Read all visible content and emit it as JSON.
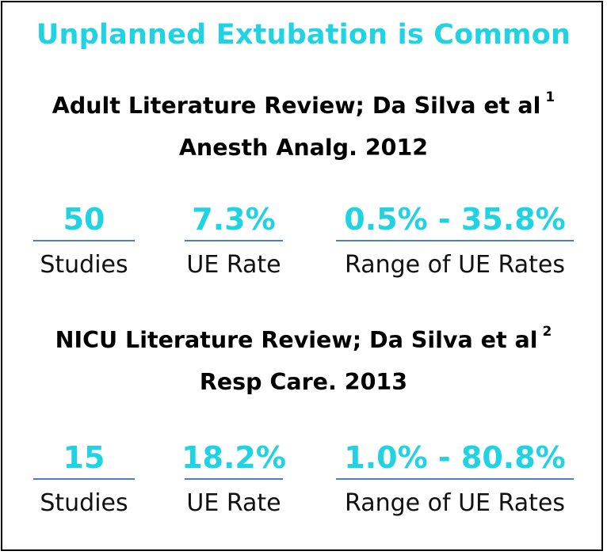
{
  "title": "Unplanned Extubation is Common",
  "sections": [
    {
      "heading_line1": "Adult Literature Review; Da Silva et al",
      "reference": "1",
      "heading_line2": "Anesth Analg. 2012",
      "stats": [
        {
          "value": "50",
          "label": "Studies"
        },
        {
          "value": "7.3%",
          "label": "UE Rate"
        },
        {
          "value": "0.5% - 35.8%",
          "label": "Range of UE Rates"
        }
      ]
    },
    {
      "heading_line1": "NICU Literature Review; Da Silva et al",
      "reference": "2",
      "heading_line2": "Resp Care. 2013",
      "stats": [
        {
          "value": "15",
          "label": "Studies"
        },
        {
          "value": "18.2%",
          "label": "UE Rate"
        },
        {
          "value": "1.0% - 80.8%",
          "label": "Range of UE Rates"
        }
      ]
    }
  ],
  "colors": {
    "accent": "#1fd3e3",
    "rule": "#4a7fc1",
    "text": "#000000"
  }
}
